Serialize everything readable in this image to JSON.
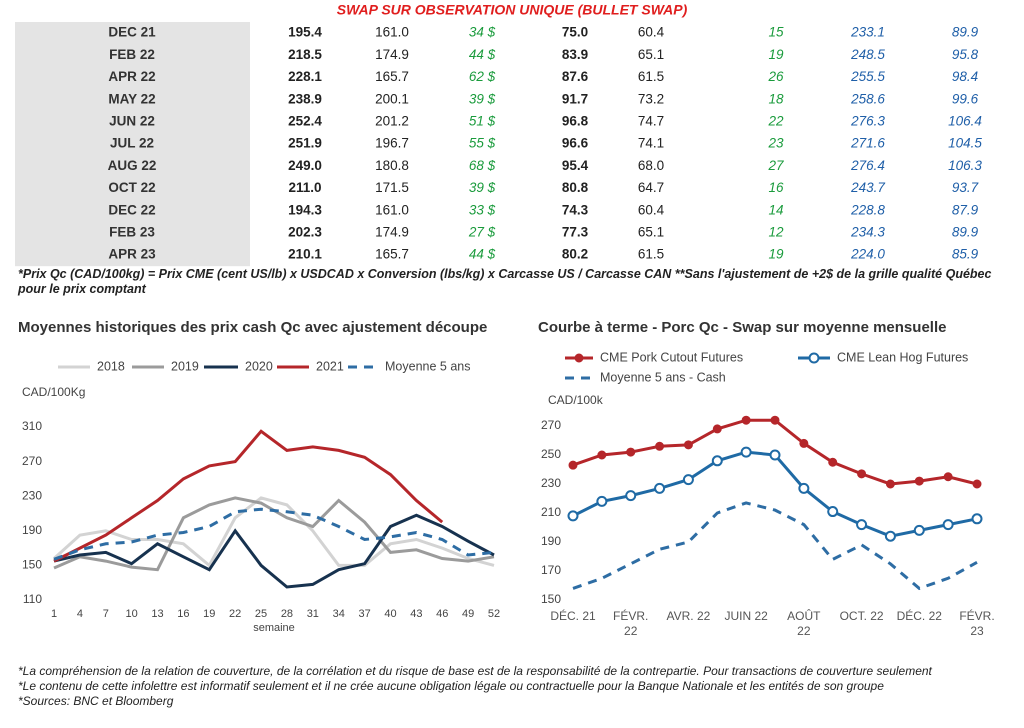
{
  "header": {
    "title": "SWAP SUR OBSERVATION UNIQUE (BULLET SWAP)"
  },
  "table": {
    "rows": [
      [
        "DEC 21",
        "195.4",
        "161.0",
        "34 $",
        "75.0",
        "60.4",
        "15",
        "233.1",
        "89.9"
      ],
      [
        "FEB 22",
        "218.5",
        "174.9",
        "44 $",
        "83.9",
        "65.1",
        "19",
        "248.5",
        "95.8"
      ],
      [
        "APR 22",
        "228.1",
        "165.7",
        "62 $",
        "87.6",
        "61.5",
        "26",
        "255.5",
        "98.4"
      ],
      [
        "MAY 22",
        "238.9",
        "200.1",
        "39 $",
        "91.7",
        "73.2",
        "18",
        "258.6",
        "99.6"
      ],
      [
        "JUN 22",
        "252.4",
        "201.2",
        "51 $",
        "96.8",
        "74.7",
        "22",
        "276.3",
        "106.4"
      ],
      [
        "JUL 22",
        "251.9",
        "196.7",
        "55 $",
        "96.6",
        "74.1",
        "23",
        "271.6",
        "104.5"
      ],
      [
        "AUG 22",
        "249.0",
        "180.8",
        "68 $",
        "95.4",
        "68.0",
        "27",
        "276.4",
        "106.3"
      ],
      [
        "OCT 22",
        "211.0",
        "171.5",
        "39 $",
        "80.8",
        "64.7",
        "16",
        "243.7",
        "93.7"
      ],
      [
        "DEC 22",
        "194.3",
        "161.0",
        "33 $",
        "74.3",
        "60.4",
        "14",
        "228.8",
        "87.9"
      ],
      [
        "FEB 23",
        "202.3",
        "174.9",
        "27 $",
        "77.3",
        "65.1",
        "12",
        "234.3",
        "89.9"
      ],
      [
        "APR 23",
        "210.1",
        "165.7",
        "44 $",
        "80.2",
        "61.5",
        "19",
        "224.0",
        "85.9"
      ]
    ],
    "note": "*Prix Qc (CAD/100kg) = Prix CME (cent US/lb) x USDCAD x Conversion (lbs/kg) x Carcasse US / Carcasse CAN **Sans l'ajustement de +2$ de la grille qualité Québec pour le prix comptant"
  },
  "chart_data": [
    {
      "type": "line",
      "title": "Moyennes historiques des prix cash Qc avec ajustement découpe",
      "y_label": "CAD/100Kg",
      "x_label": "semaine",
      "x": [
        1,
        4,
        7,
        10,
        13,
        16,
        19,
        22,
        25,
        28,
        31,
        34,
        37,
        40,
        43,
        46,
        49,
        52
      ],
      "xlim": [
        1,
        52
      ],
      "xticks": [
        1,
        4,
        7,
        10,
        13,
        16,
        19,
        22,
        25,
        28,
        31,
        34,
        37,
        40,
        43,
        46,
        49,
        52
      ],
      "ylim": [
        110,
        310
      ],
      "yticks": [
        110,
        150,
        190,
        230,
        270,
        310
      ],
      "grid": false,
      "series": [
        {
          "name": "2018",
          "color": "#d3d3d3",
          "values": [
            158,
            185,
            190,
            180,
            180,
            175,
            150,
            205,
            228,
            220,
            190,
            150,
            150,
            175,
            180,
            170,
            158,
            150
          ]
        },
        {
          "name": "2019",
          "color": "#9b9b9b",
          "values": [
            147,
            160,
            155,
            148,
            145,
            205,
            220,
            228,
            222,
            205,
            195,
            225,
            200,
            165,
            168,
            158,
            155,
            160
          ]
        },
        {
          "name": "2020",
          "color": "#17324f",
          "values": [
            155,
            162,
            165,
            152,
            175,
            160,
            145,
            190,
            150,
            125,
            128,
            145,
            152,
            195,
            208,
            195,
            178,
            162
          ]
        },
        {
          "name": "2021",
          "color": "#b5262a",
          "values": [
            155,
            170,
            185,
            205,
            225,
            250,
            265,
            270,
            305,
            283,
            287,
            283,
            275,
            255,
            225,
            200,
            null,
            null
          ]
        },
        {
          "name": "Moyenne 5 ans",
          "color": "#2e6da4",
          "dashed": true,
          "values": [
            157,
            168,
            175,
            177,
            185,
            188,
            195,
            212,
            215,
            212,
            208,
            195,
            180,
            183,
            188,
            180,
            162,
            165
          ]
        }
      ]
    },
    {
      "type": "line",
      "title": "Courbe à terme - Porc Qc - Swap sur moyenne mensuelle",
      "y_label": "CAD/100k",
      "categories": [
        "DÉC. 21",
        null,
        "FÉVR.\n22",
        null,
        "AVR. 22",
        null,
        "JUIN 22",
        null,
        "AOÛT\n22",
        null,
        "OCT. 22",
        null,
        "DÉC. 22",
        null,
        "FÉVR.\n23"
      ],
      "ylim": [
        150,
        270
      ],
      "yticks": [
        150,
        170,
        190,
        210,
        230,
        250,
        270
      ],
      "grid": false,
      "series": [
        {
          "name": "CME Pork Cutout Futures",
          "color": "#b5262a",
          "marker": "filled",
          "values": [
            243,
            250,
            252,
            256,
            257,
            268,
            274,
            274,
            258,
            245,
            237,
            230,
            232,
            235,
            230
          ]
        },
        {
          "name": "CME Lean Hog Futures",
          "color": "#1f6aa5",
          "marker": "open",
          "values": [
            208,
            218,
            222,
            227,
            233,
            246,
            252,
            250,
            227,
            211,
            202,
            194,
            198,
            202,
            206
          ]
        },
        {
          "name": "Moyenne 5 ans - Cash",
          "color": "#2e6da4",
          "dashed": true,
          "values": [
            158,
            165,
            175,
            185,
            190,
            210,
            217,
            212,
            202,
            178,
            188,
            175,
            158,
            165,
            176
          ]
        }
      ]
    }
  ],
  "footnotes": [
    "*La compréhension de la relation de couverture, de la corrélation et du risque de base est de la responsabilité de la contrepartie. Pour transactions de couverture seulement",
    "*Le contenu de cette infolettre est informatif seulement et il ne crée aucune obligation légale ou contractuelle pour la Banque Nationale et les entités de son groupe",
    "*Sources: BNC et Bloomberg"
  ]
}
